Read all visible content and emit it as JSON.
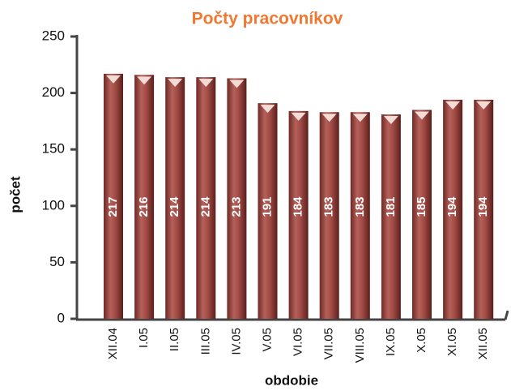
{
  "chart_data": {
    "type": "bar",
    "title": "Počty pracovníkov",
    "y_label": "počet",
    "x_label": "obdobie",
    "categories": [
      "XII.04",
      "I.05",
      "II.05",
      "III.05",
      "IV.05",
      "V.05",
      "VI.05",
      "VII.05",
      "VIII.05",
      "IX.05",
      "X.05",
      "XI.05",
      "XII.05"
    ],
    "values": [
      217,
      216,
      214,
      214,
      213,
      191,
      184,
      183,
      183,
      181,
      185,
      194,
      194
    ],
    "color": "#a24b45",
    "ylim": [
      0,
      250
    ],
    "yticks": [
      0,
      50,
      100,
      150,
      200,
      250
    ],
    "grid": false
  }
}
